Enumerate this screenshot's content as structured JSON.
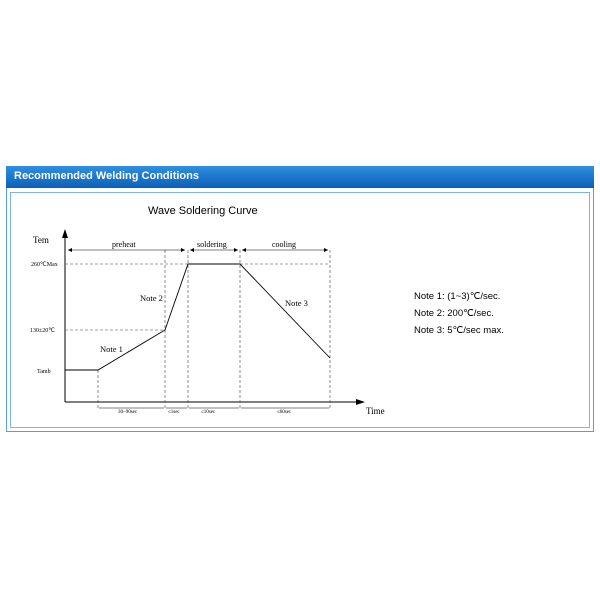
{
  "header": {
    "title": "Recommended Welding Conditions"
  },
  "diagram": {
    "title": "Wave Soldering Curve",
    "y_axis_label": "Tem",
    "x_axis_label": "Time",
    "y_levels": [
      "260℃Max",
      "130±20℃",
      "Tamb"
    ],
    "zones": [
      "preheat",
      "soldering",
      "cooling"
    ],
    "segment_notes": [
      "Note 1",
      "Note 2",
      "Note 3"
    ],
    "durations": [
      "30~90sec",
      "≤1sec",
      "≤10sec",
      "≤60sec"
    ]
  },
  "notes": [
    "Note 1: (1~3)℃/sec.",
    "Note 2: 200℃/sec.",
    "Note 3: 5℃/sec max."
  ]
}
